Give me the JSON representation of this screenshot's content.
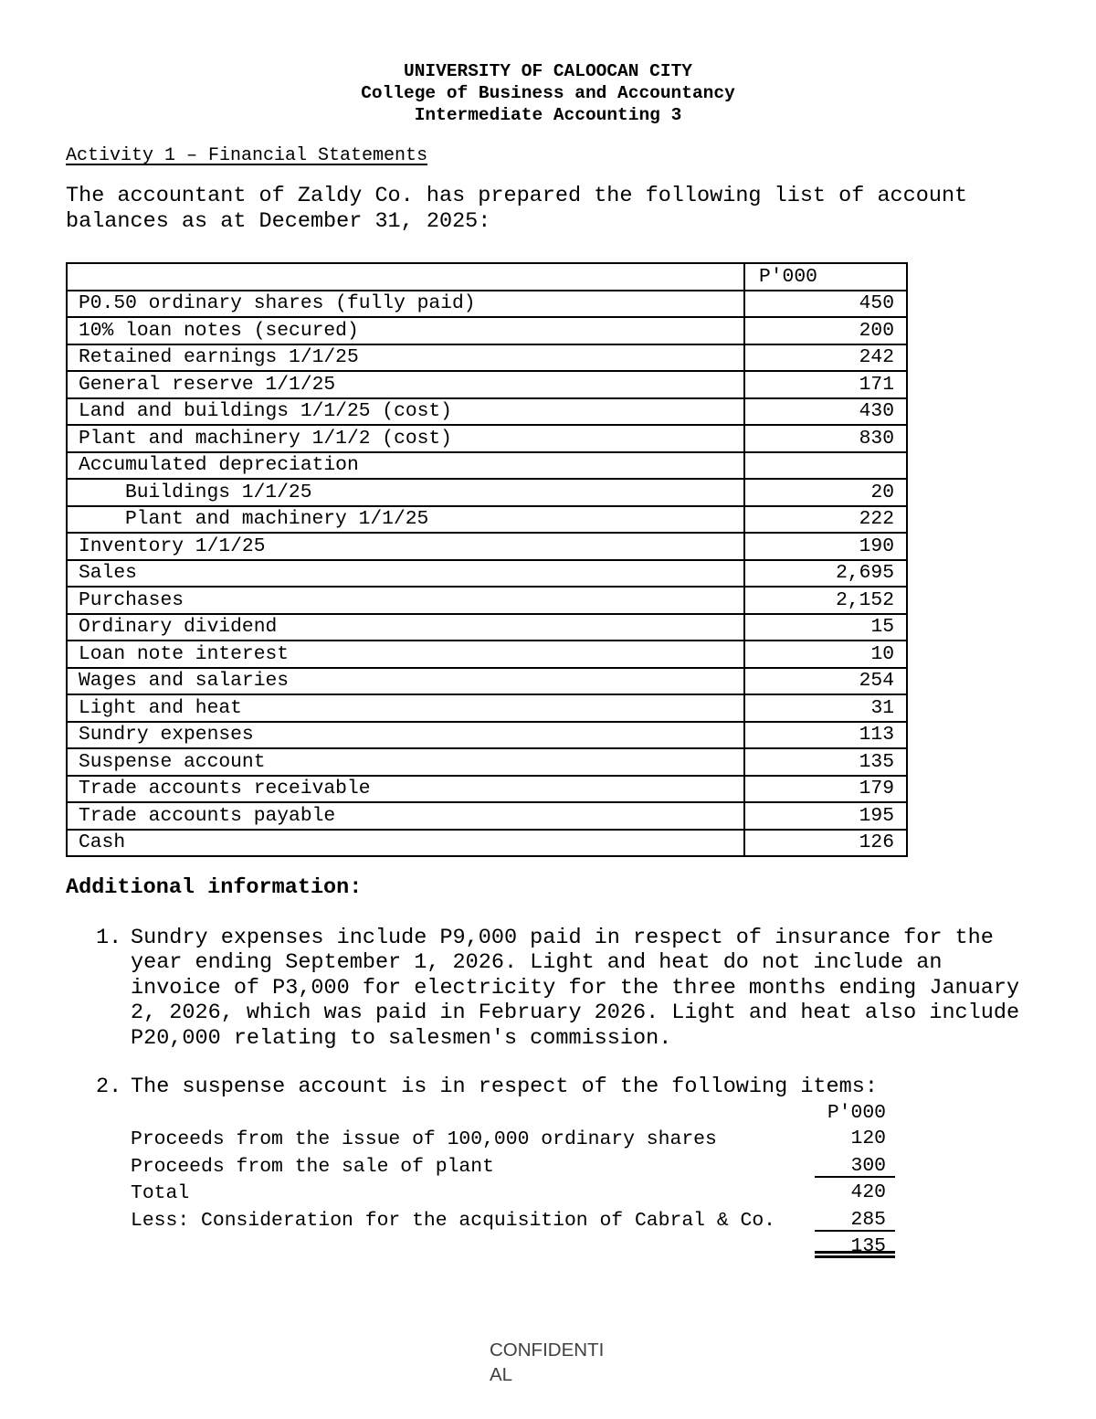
{
  "header": {
    "line1": "UNIVERSITY OF CALOOCAN CITY",
    "line2": "College of Business and Accountancy",
    "line3": "Intermediate Accounting 3"
  },
  "activity_title": "Activity 1 – Financial Statements",
  "intro": "The accountant of Zaldy Co. has prepared the following list of account balances as at December 31, 2025:",
  "balances_table": {
    "value_header": "P'000",
    "rows": [
      {
        "label": "P0.50 ordinary shares (fully paid)",
        "value": "450"
      },
      {
        "label": "10% loan notes (secured)",
        "value": "200"
      },
      {
        "label": "Retained earnings 1/1/25",
        "value": "242"
      },
      {
        "label": "General reserve 1/1/25",
        "value": "171"
      },
      {
        "label": "Land and buildings 1/1/25 (cost)",
        "value": "430"
      },
      {
        "label": "Plant and machinery 1/1/2 (cost)",
        "value": "830"
      },
      {
        "label": "Accumulated depreciation",
        "value": ""
      },
      {
        "label": "Buildings 1/1/25",
        "value": "20"
      },
      {
        "label": "Plant and machinery 1/1/25",
        "value": "222"
      },
      {
        "label": "Inventory 1/1/25",
        "value": "190"
      },
      {
        "label": "Sales",
        "value": "2,695"
      },
      {
        "label": "Purchases",
        "value": "2,152"
      },
      {
        "label": "Ordinary dividend",
        "value": "15"
      },
      {
        "label": "Loan note interest",
        "value": "10"
      },
      {
        "label": "Wages and salaries",
        "value": "254"
      },
      {
        "label": "Light and heat",
        "value": "31"
      },
      {
        "label": "Sundry expenses",
        "value": "113"
      },
      {
        "label": "Suspense account",
        "value": "135"
      },
      {
        "label": "Trade accounts receivable",
        "value": "179"
      },
      {
        "label": "Trade accounts payable",
        "value": "195"
      },
      {
        "label": "Cash",
        "value": "126"
      }
    ]
  },
  "additional_info": {
    "heading": "Additional information:",
    "items": [
      {
        "number": "1.",
        "text": "Sundry expenses include P9,000 paid in respect of insurance for the year ending September 1, 2026. Light and heat do not include an invoice of P3,000 for electricity for the three months ending January 2, 2026, which was paid in February 2026. Light and heat also include P20,000 relating to salesmen's commission."
      },
      {
        "number": "2.",
        "text": "The suspense account is in respect of the following items:"
      }
    ]
  },
  "suspense_table": {
    "value_header": "P'000",
    "rows": [
      {
        "label": "Proceeds from the issue of 100,000 ordinary shares",
        "value": "120"
      },
      {
        "label": "Proceeds from the sale of plant",
        "value": "300"
      },
      {
        "label": "Total",
        "value": "420"
      },
      {
        "label": "Less: Consideration for the acquisition of Cabral & Co.",
        "value": "285"
      },
      {
        "label": "",
        "value": "135"
      }
    ]
  },
  "footer": {
    "lines": [
      "CONFIDENTI",
      "AL"
    ]
  }
}
